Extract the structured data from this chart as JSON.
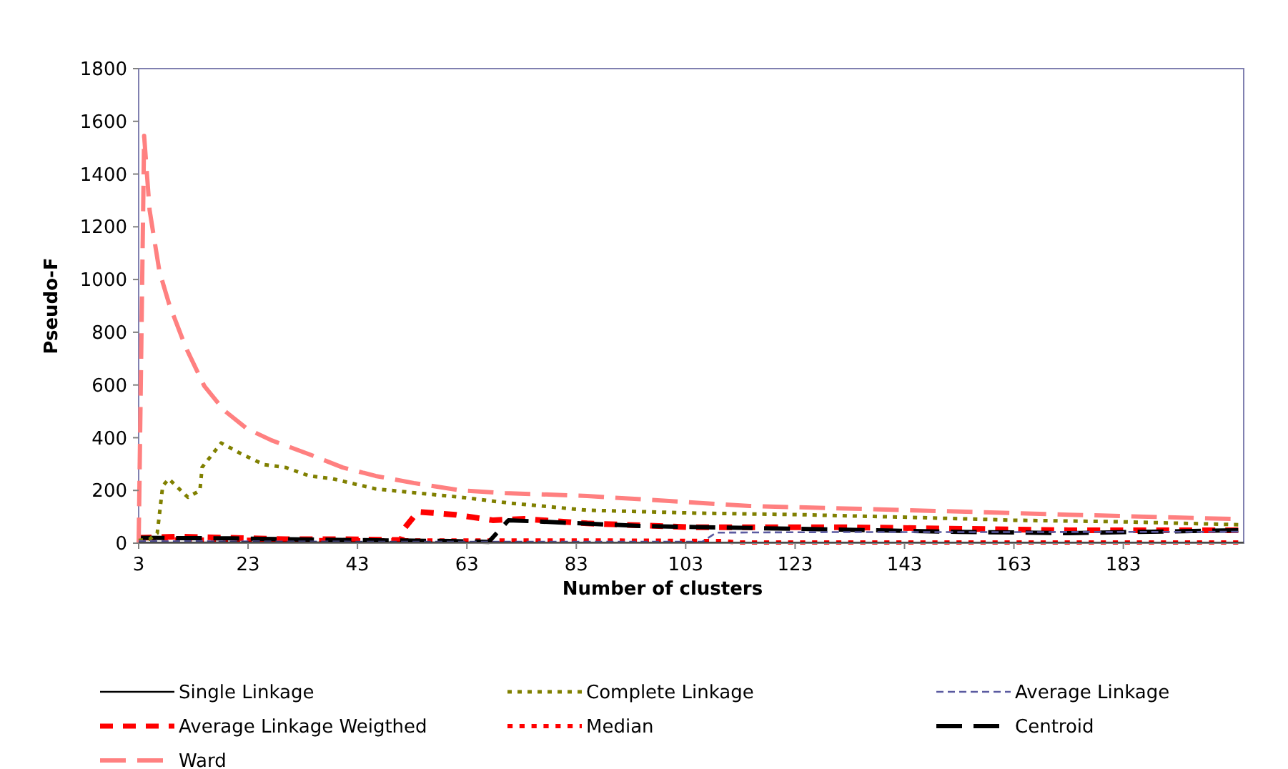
{
  "chart_data": {
    "type": "line",
    "xlabel": "Number of clusters",
    "ylabel": "Pseudo-F",
    "xlim": [
      3,
      205
    ],
    "xticks": [
      3,
      23,
      43,
      63,
      83,
      103,
      123,
      143,
      163,
      183
    ],
    "ylim": [
      0,
      1800
    ],
    "yticks": [
      0,
      200,
      400,
      600,
      800,
      1000,
      1200,
      1400,
      1600,
      1800
    ],
    "grid": false,
    "legend": "bottom",
    "series": [
      {
        "name": "Single Linkage",
        "color": "#000000",
        "line_style": "solid",
        "x": [
          3,
          20,
          50,
          100,
          150,
          205
        ],
        "values": [
          2,
          3,
          3,
          2,
          2,
          2
        ]
      },
      {
        "name": "Complete Linkage",
        "color": "#808000",
        "line_style": "dotted",
        "x": [
          3,
          5,
          6.4,
          7.4,
          8.5,
          12,
          14.2,
          14.6,
          18.1,
          22,
          25.9,
          29.9,
          34.2,
          38.5,
          46.3,
          54,
          62,
          70.8,
          85,
          104.7,
          124,
          144,
          163,
          183,
          204
        ],
        "values": [
          10,
          15,
          38,
          217,
          244,
          174,
          200,
          288,
          380,
          336,
          298,
          287,
          255,
          244,
          206,
          190,
          174,
          152,
          125,
          114,
          108,
          98,
          87,
          81,
          70
        ]
      },
      {
        "name": "Average Linkage",
        "color": "#5a5aa0",
        "line_style": "dashed",
        "x": [
          3,
          30,
          60,
          90,
          106,
          108.6,
          130,
          160,
          204
        ],
        "values": [
          8,
          6,
          5,
          5,
          5,
          40,
          42,
          42,
          43
        ]
      },
      {
        "name": "Average Linkage Weigthed",
        "color": "#ff0000",
        "line_style": "dashed",
        "x": [
          3,
          10,
          20,
          30,
          40,
          51,
          51.5,
          54,
          60.9,
          67.7,
          73.5,
          85,
          104.7,
          134,
          173,
          204
        ],
        "values": [
          20,
          25,
          20,
          15,
          15,
          12,
          54,
          119,
          108,
          87,
          92,
          75,
          60,
          60,
          49,
          49
        ]
      },
      {
        "name": "Median",
        "color": "#ff0000",
        "line_style": "dotted",
        "x": [
          3,
          30,
          60,
          90,
          110,
          112,
          150,
          204
        ],
        "values": [
          15,
          12,
          10,
          10,
          8,
          3,
          3,
          3
        ]
      },
      {
        "name": "Centroid",
        "color": "#000000",
        "line_style": "dashed",
        "x": [
          3,
          20,
          40,
          60,
          67,
          70.6,
          95,
          124,
          153,
          173,
          204
        ],
        "values": [
          20,
          18,
          12,
          8,
          5,
          87,
          65,
          54,
          43,
          38,
          49
        ]
      },
      {
        "name": "Ward",
        "color": "#ff8080",
        "line_style": "dashed",
        "x": [
          3,
          4,
          5,
          6.8,
          8.6,
          11.6,
          15,
          18.6,
          22.8,
          27.3,
          34.3,
          40.3,
          46.3,
          53.3,
          62,
          70,
          85,
          114.7,
          144,
          173,
          202.6
        ],
        "values": [
          0,
          1545,
          1263,
          1030,
          905,
          743,
          596,
          504,
          434,
          390,
          336,
          287,
          255,
          228,
          200,
          190,
          179,
          141,
          125,
          108,
          92
        ]
      }
    ]
  }
}
